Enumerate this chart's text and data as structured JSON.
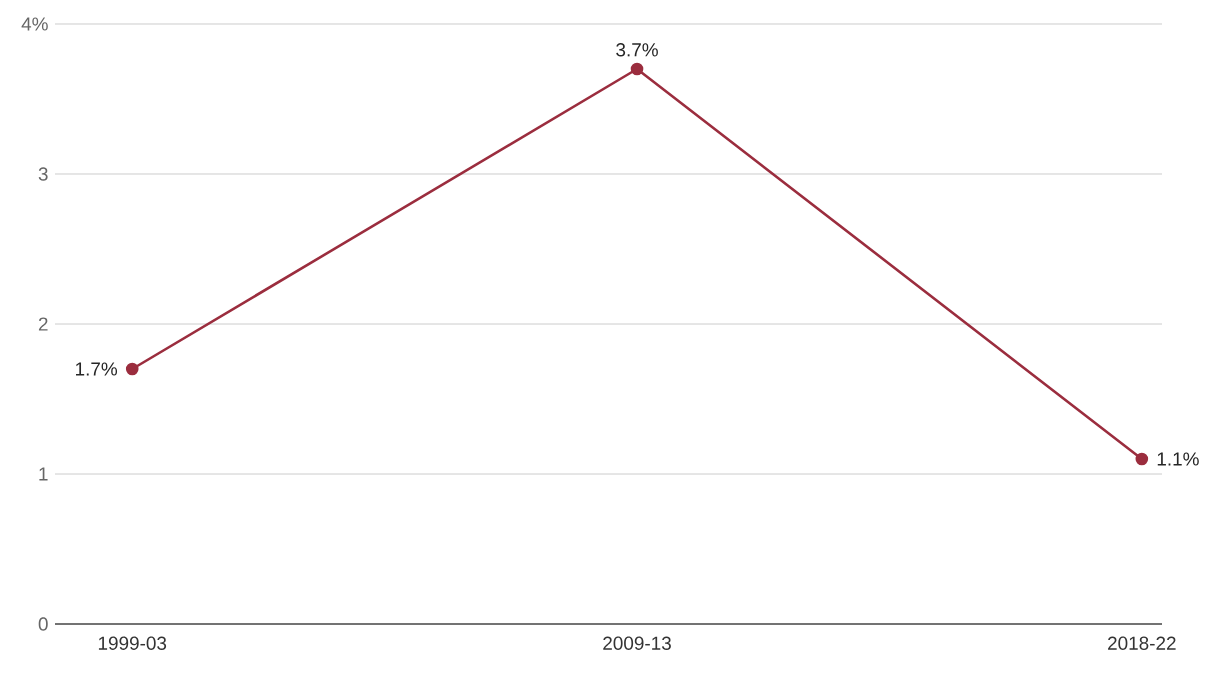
{
  "chart_data": {
    "type": "line",
    "categories": [
      "1999-03",
      "2009-13",
      "2018-22"
    ],
    "series": [
      {
        "color": "#9b2d3e",
        "values": [
          1.7,
          3.7,
          1.1
        ],
        "value_labels": [
          "1.7%",
          "3.7%",
          "1.1%"
        ]
      }
    ],
    "ylim": [
      0,
      4
    ],
    "yticks": [
      0,
      1,
      2,
      3,
      {
        "value": 4,
        "label": "4%"
      }
    ],
    "grid": "y",
    "marker": "circle",
    "line_style": "solid"
  }
}
